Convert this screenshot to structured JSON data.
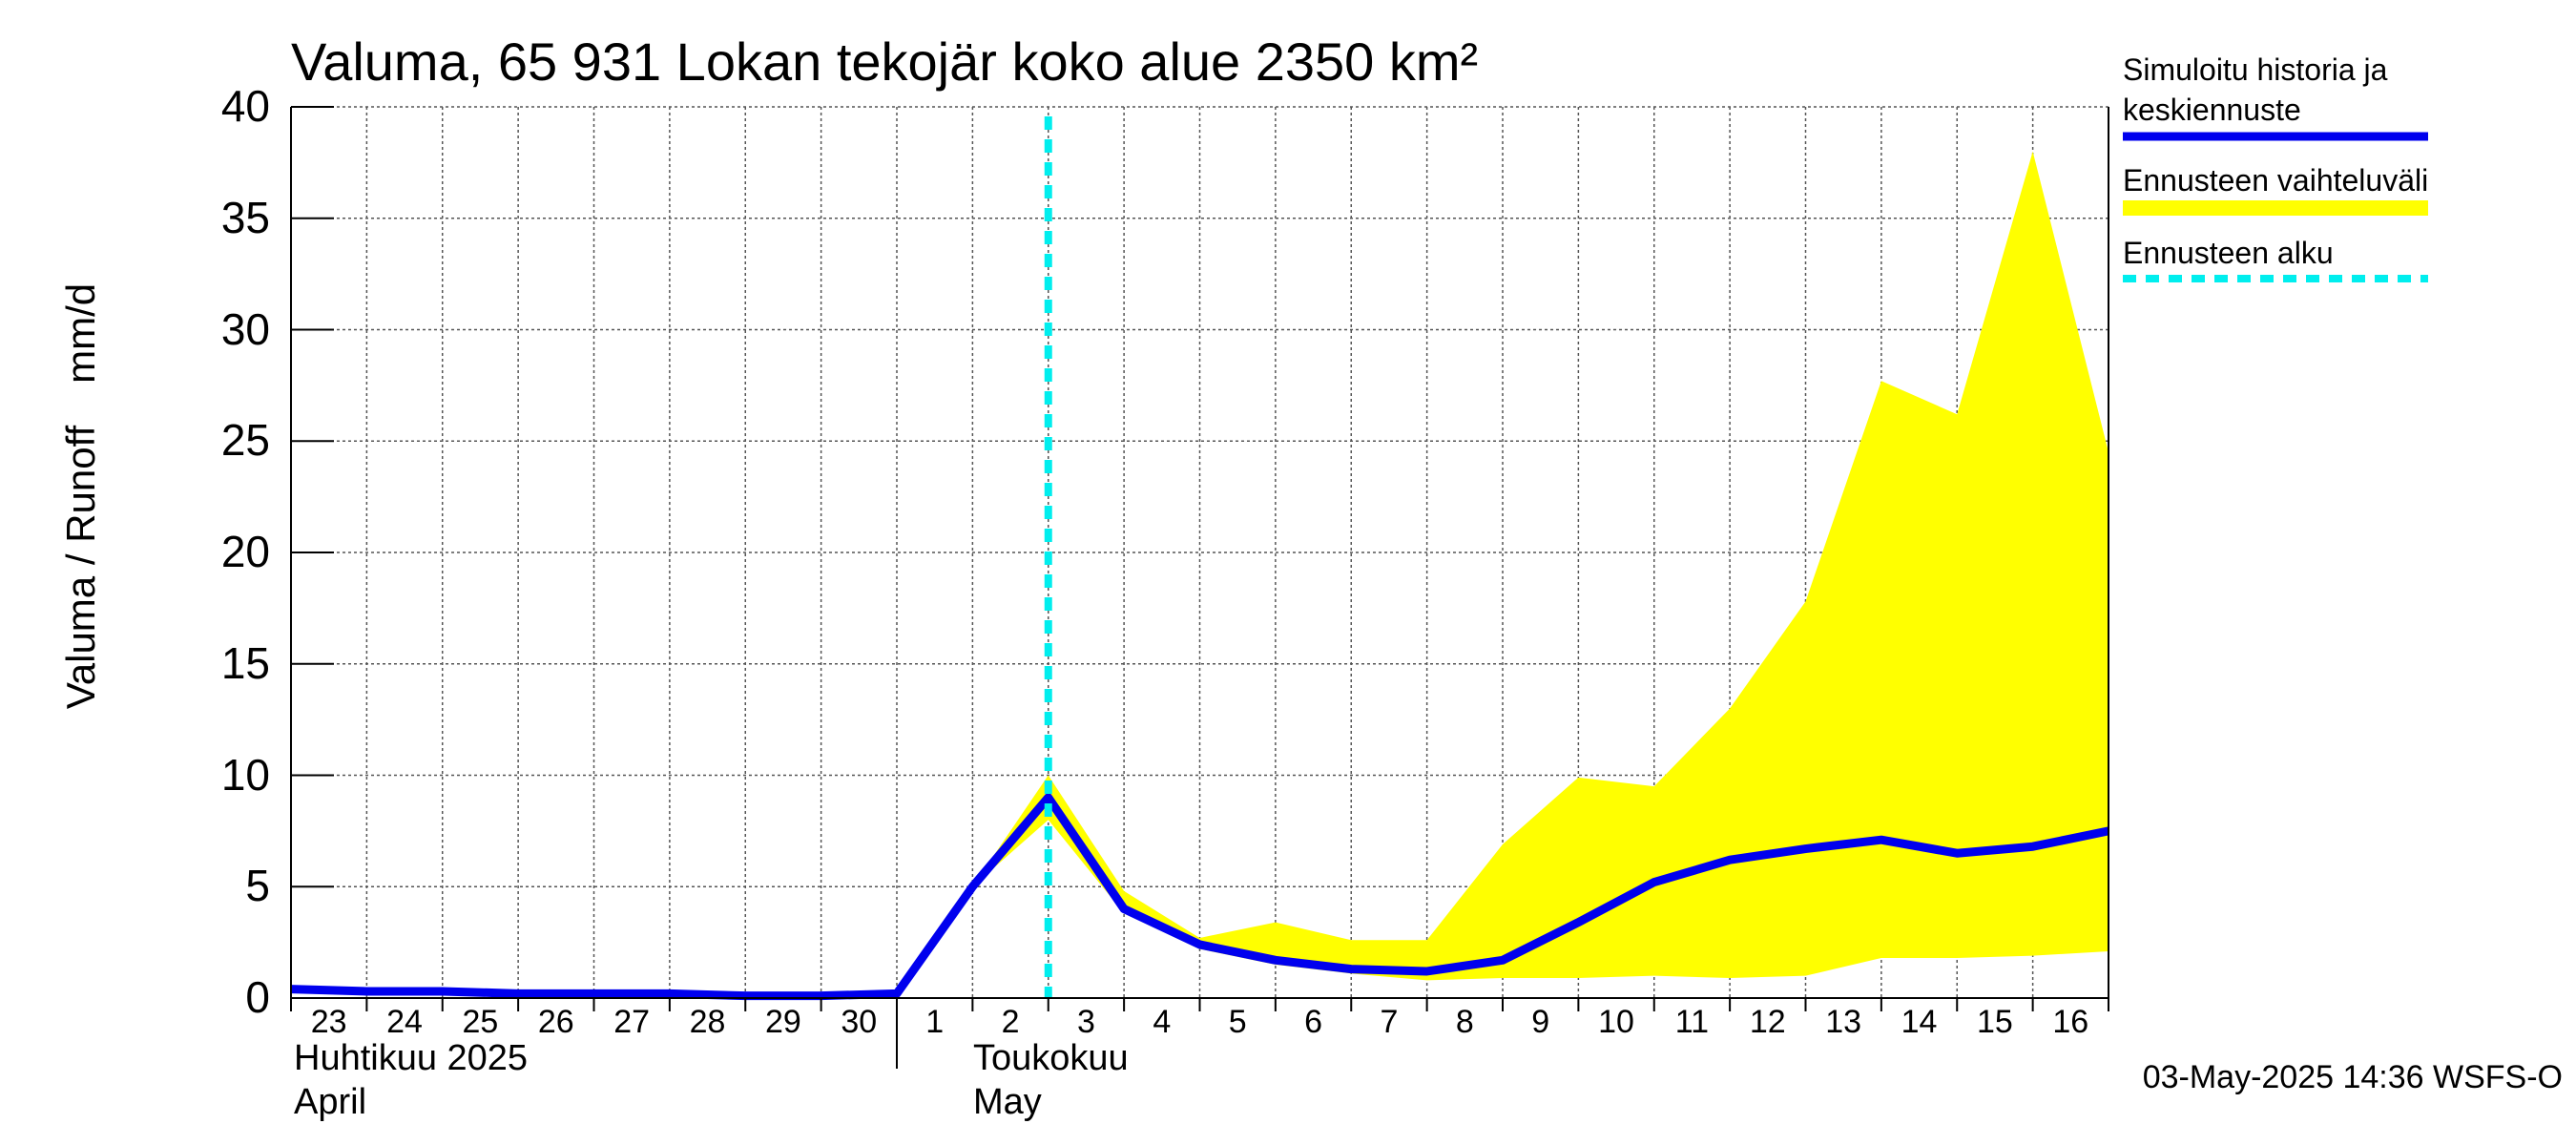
{
  "chart_data": {
    "type": "area",
    "title": "Valuma, 65 931 Lokan tekojär koko alue 2350 km²",
    "ylabel": "Valuma / Runoff",
    "yunit": "mm/d",
    "ylim": [
      0,
      40
    ],
    "yticks": [
      "0",
      "5",
      "10",
      "15",
      "20",
      "25",
      "30",
      "35",
      "40"
    ],
    "x_start": "2025-04-23",
    "x_end": "2025-05-17",
    "xtick_labels": [
      "23",
      "24",
      "25",
      "26",
      "27",
      "28",
      "29",
      "30",
      "1",
      "2",
      "3",
      "4",
      "5",
      "6",
      "7",
      "8",
      "9",
      "10",
      "11",
      "12",
      "13",
      "14",
      "15",
      "16"
    ],
    "month_labels": [
      {
        "line1": "Huhtikuu  2025",
        "line2": "April"
      },
      {
        "line1": "Toukokuu",
        "line2": "May"
      }
    ],
    "grid": true,
    "forecast_start": "2025-05-03",
    "series": [
      {
        "name": "Simuloitu historia ja keskiennuste",
        "color": "#0000ee",
        "x": [
          "2025-04-23",
          "2025-04-24",
          "2025-04-25",
          "2025-04-26",
          "2025-04-27",
          "2025-04-28",
          "2025-04-29",
          "2025-04-30",
          "2025-05-01",
          "2025-05-02",
          "2025-05-03",
          "2025-05-04",
          "2025-05-05",
          "2025-05-06",
          "2025-05-07",
          "2025-05-08",
          "2025-05-09",
          "2025-05-10",
          "2025-05-11",
          "2025-05-12",
          "2025-05-13",
          "2025-05-14",
          "2025-05-15",
          "2025-05-16",
          "2025-05-17"
        ],
        "values": [
          0.4,
          0.3,
          0.3,
          0.2,
          0.2,
          0.2,
          0.1,
          0.1,
          0.2,
          5.0,
          9.0,
          4.0,
          2.4,
          1.7,
          1.3,
          1.2,
          1.7,
          3.4,
          5.2,
          6.2,
          6.7,
          7.1,
          6.5,
          6.8,
          7.5
        ]
      },
      {
        "name": "Ennusteen vaihteluväli",
        "color": "#ffff00",
        "x": [
          "2025-05-02",
          "2025-05-03",
          "2025-05-04",
          "2025-05-05",
          "2025-05-06",
          "2025-05-07",
          "2025-05-08",
          "2025-05-09",
          "2025-05-10",
          "2025-05-11",
          "2025-05-12",
          "2025-05-13",
          "2025-05-14",
          "2025-05-15",
          "2025-05-16",
          "2025-05-17"
        ],
        "upper": [
          5.0,
          10.0,
          4.8,
          2.7,
          3.4,
          2.6,
          2.6,
          6.9,
          9.9,
          9.5,
          13.0,
          17.8,
          27.7,
          26.2,
          38.0,
          24.5
        ],
        "lower": [
          5.0,
          8.0,
          3.8,
          2.2,
          1.5,
          1.1,
          0.8,
          0.9,
          0.9,
          1.0,
          0.9,
          1.0,
          1.8,
          1.8,
          1.9,
          2.1
        ]
      }
    ],
    "legend": [
      {
        "label": "Simuloitu historia ja keskiennuste",
        "color": "#0000ee",
        "style": "solid"
      },
      {
        "label": "Ennusteen vaihteluväli",
        "color": "#ffff00",
        "style": "solid"
      },
      {
        "label": "Ennusteen alku",
        "color": "#00eeee",
        "style": "dashed"
      }
    ],
    "legend_placement": "right"
  },
  "footer": {
    "timestamp": "03-May-2025 14:36 WSFS-O"
  }
}
